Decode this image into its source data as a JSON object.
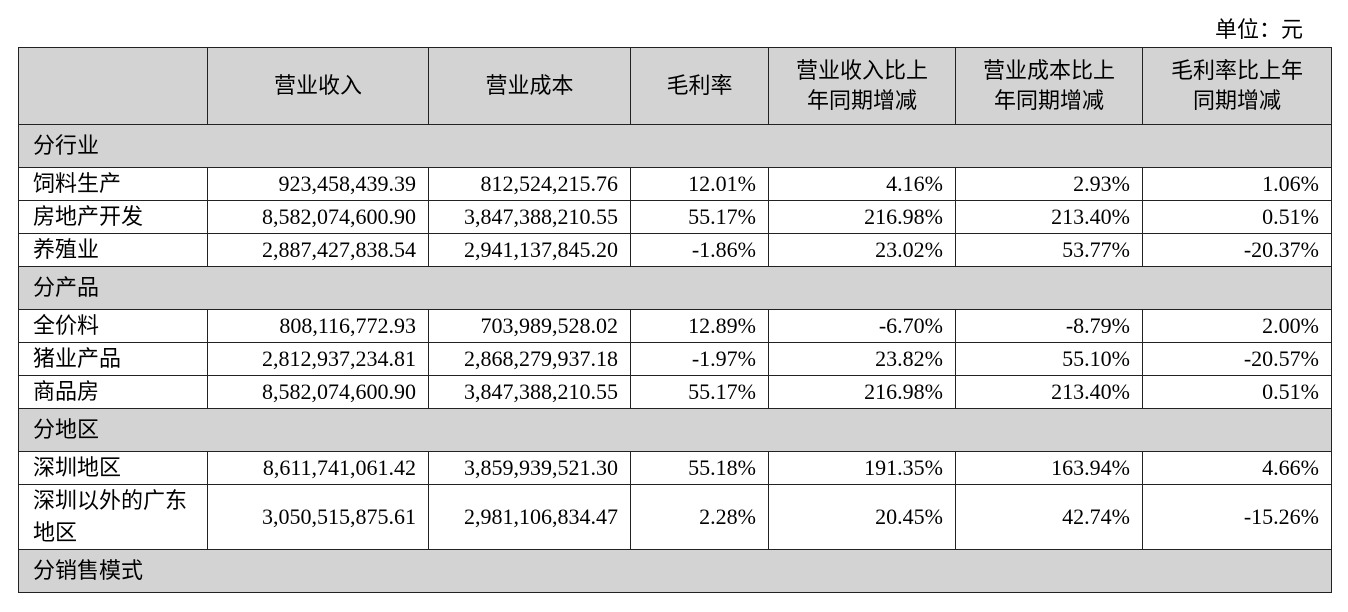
{
  "unit_label": "单位：元",
  "columns": [
    "",
    "营业收入",
    "营业成本",
    "毛利率",
    "营业收入比上年同期增减",
    "营业成本比上年同期增减",
    "毛利率比上年同期增减"
  ],
  "header_display": [
    "",
    "营业收入",
    "营业成本",
    "毛利率",
    "营业收入比上\n年同期增减",
    "营业成本比上\n年同期增减",
    "毛利率比上年\n同期增减"
  ],
  "sections": [
    {
      "title": "分行业",
      "rows": [
        [
          "饲料生产",
          "923,458,439.39",
          "812,524,215.76",
          "12.01%",
          "4.16%",
          "2.93%",
          "1.06%"
        ],
        [
          "房地产开发",
          "8,582,074,600.90",
          "3,847,388,210.55",
          "55.17%",
          "216.98%",
          "213.40%",
          "0.51%"
        ],
        [
          "养殖业",
          "2,887,427,838.54",
          "2,941,137,845.20",
          "-1.86%",
          "23.02%",
          "53.77%",
          "-20.37%"
        ]
      ]
    },
    {
      "title": "分产品",
      "rows": [
        [
          "全价料",
          "808,116,772.93",
          "703,989,528.02",
          "12.89%",
          "-6.70%",
          "-8.79%",
          "2.00%"
        ],
        [
          "猪业产品",
          "2,812,937,234.81",
          "2,868,279,937.18",
          "-1.97%",
          "23.82%",
          "55.10%",
          "-20.57%"
        ],
        [
          "商品房",
          "8,582,074,600.90",
          "3,847,388,210.55",
          "55.17%",
          "216.98%",
          "213.40%",
          "0.51%"
        ]
      ]
    },
    {
      "title": "分地区",
      "rows": [
        [
          "深圳地区",
          "8,611,741,061.42",
          "3,859,939,521.30",
          "55.18%",
          "191.35%",
          "163.94%",
          "4.66%"
        ],
        [
          "深圳以外的广东地区",
          "3,050,515,875.61",
          "2,981,106,834.47",
          "2.28%",
          "20.45%",
          "42.74%",
          "-15.26%"
        ]
      ]
    },
    {
      "title": "分销售模式",
      "rows": []
    }
  ]
}
